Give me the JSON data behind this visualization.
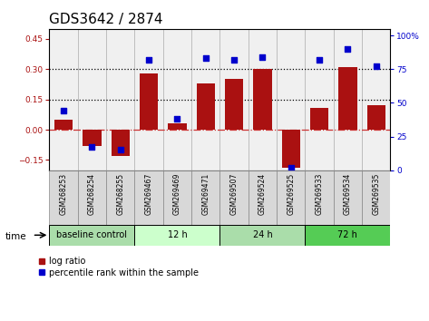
{
  "title": "GDS3642 / 2874",
  "samples": [
    "GSM268253",
    "GSM268254",
    "GSM268255",
    "GSM269467",
    "GSM269469",
    "GSM269471",
    "GSM269507",
    "GSM269524",
    "GSM269525",
    "GSM269533",
    "GSM269534",
    "GSM269535"
  ],
  "log_ratio": [
    0.05,
    -0.08,
    -0.13,
    0.28,
    0.03,
    0.23,
    0.25,
    0.3,
    -0.19,
    0.11,
    0.31,
    0.12
  ],
  "pct_rank": [
    44,
    17,
    15,
    82,
    38,
    83,
    82,
    84,
    2,
    82,
    90,
    77
  ],
  "groups": [
    {
      "label": "baseline control",
      "start": 0,
      "end": 3,
      "color": "#aaddaa"
    },
    {
      "label": "12 h",
      "start": 3,
      "end": 6,
      "color": "#ccffcc"
    },
    {
      "label": "24 h",
      "start": 6,
      "end": 9,
      "color": "#aaddaa"
    },
    {
      "label": "72 h",
      "start": 9,
      "end": 12,
      "color": "#55cc55"
    }
  ],
  "bar_color": "#aa1111",
  "dot_color": "#0000cc",
  "ylim_left": [
    -0.2,
    0.5
  ],
  "ylim_right": [
    0,
    105
  ],
  "yticks_left": [
    -0.15,
    0.0,
    0.15,
    0.3,
    0.45
  ],
  "yticks_right": [
    0,
    25,
    50,
    75,
    100
  ],
  "hlines": [
    0.15,
    0.3
  ],
  "zero_line_color": "#cc3333",
  "tick_fontsize": 6.5,
  "title_fontsize": 11
}
